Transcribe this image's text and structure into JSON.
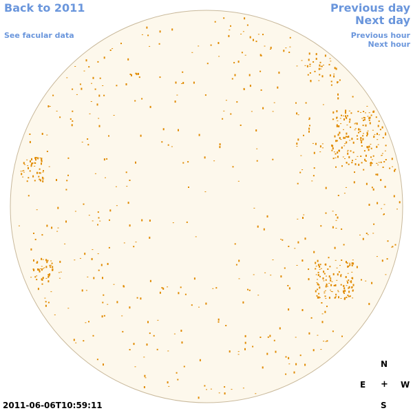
{
  "nav": {
    "back": "Back to 2011",
    "facular": "See facular data",
    "previous_day": "Previous day",
    "next_day": "Next day",
    "previous_hour": "Previous hour",
    "next_hour": "Next hour"
  },
  "compass": {
    "north": "N",
    "east": "E",
    "center": "+",
    "west": "W",
    "south": "S"
  },
  "timestamp": "2011-06-06T10:59:11",
  "colors": {
    "link": "#6a96dc",
    "disk_fill": "#fdf8ec",
    "disk_edge": "#c8b89a",
    "spot": "#e08a00"
  }
}
